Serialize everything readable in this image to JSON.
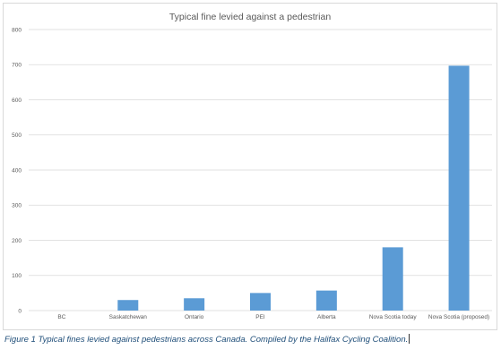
{
  "chart_data": {
    "type": "bar",
    "title": "Typical fine levied against a pedestrian",
    "categories": [
      "BC",
      "Saskatchewan",
      "Ontario",
      "PEI",
      "Alberta",
      "Nova Scotia today",
      "Nova Scotia (proposed)"
    ],
    "values": [
      0,
      30,
      35,
      50,
      57,
      180,
      697
    ],
    "ylim": [
      0,
      800
    ],
    "yticks": [
      0,
      100,
      200,
      300,
      400,
      500,
      600,
      700,
      800
    ],
    "grid": true,
    "bar_color": "#5b9bd5"
  },
  "caption": "Figure 1 Typical fines levied against pedestrians across Canada. Compiled by the Halifax Cycling Coalition."
}
